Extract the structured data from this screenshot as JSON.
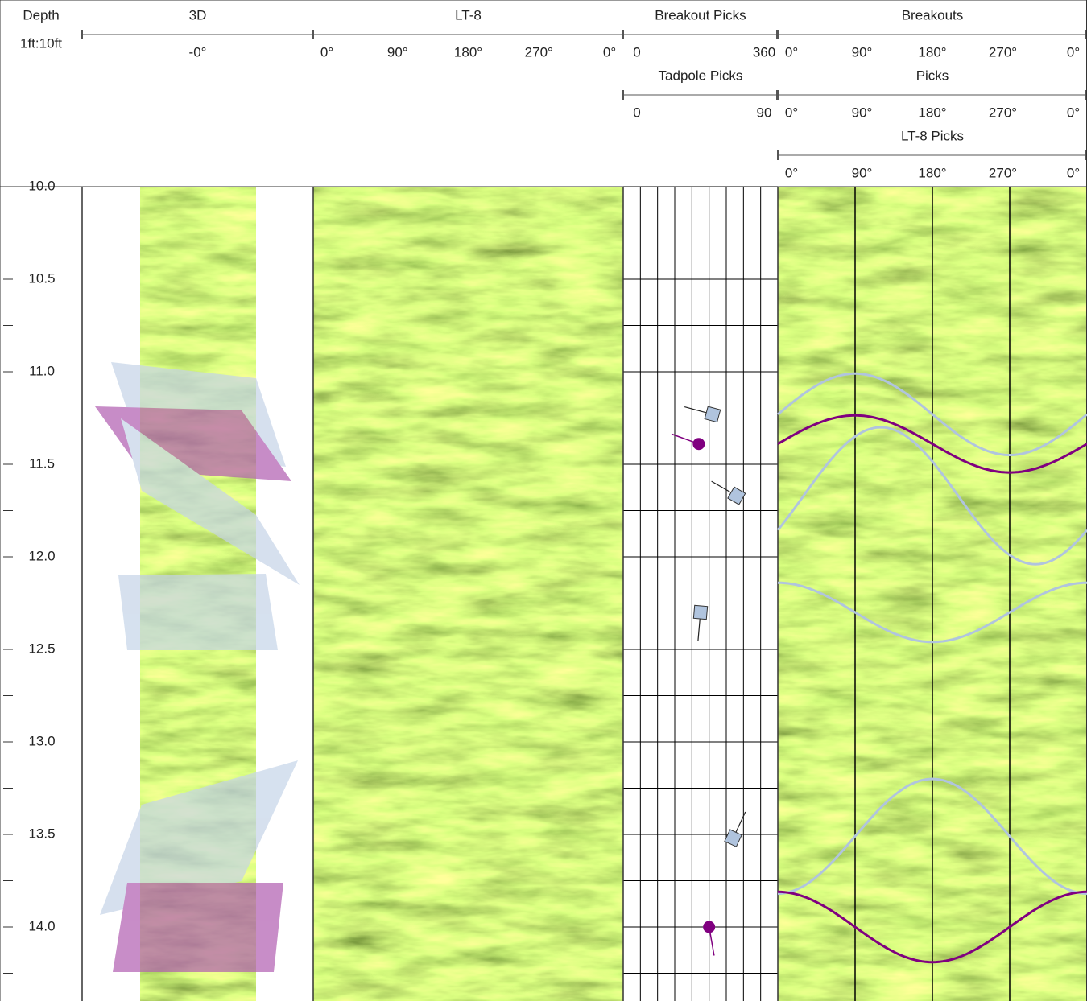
{
  "tracks": [
    {
      "title": "Depth",
      "subtitle": "1ft:10ft"
    },
    {
      "title": "3D",
      "scales": [
        {
          "labels": [
            "-0°"
          ]
        }
      ]
    },
    {
      "title": "LT-8",
      "scales": [
        {
          "labels": [
            "0°",
            "90°",
            "180°",
            "270°",
            "0°"
          ]
        }
      ]
    },
    {
      "title": "Breakout Picks",
      "scales": [
        {
          "labels": [
            "0",
            "360"
          ]
        },
        {
          "title": "Tadpole Picks",
          "labels": [
            "0",
            "90"
          ]
        }
      ]
    },
    {
      "title": "Breakouts",
      "scales": [
        {
          "labels": [
            "0°",
            "90°",
            "180°",
            "270°",
            "0°"
          ]
        },
        {
          "title": "Picks",
          "labels": [
            "0°",
            "90°",
            "180°",
            "270°",
            "0°"
          ]
        },
        {
          "title": "LT-8 Picks",
          "labels": [
            "0°",
            "90°",
            "180°",
            "270°",
            "0°"
          ]
        }
      ]
    }
  ],
  "depth_axis": {
    "lim": [
      10,
      14.4
    ],
    "ticks": [
      {
        "value": 10,
        "label": "10.0"
      },
      10.5,
      {
        "value": 11,
        "label": "11.0"
      },
      11.5,
      {
        "value": 12,
        "label": "12.0"
      },
      12.5,
      {
        "value": 13,
        "label": "13.0"
      },
      13.5,
      {
        "value": 14,
        "label": "14.0"
      }
    ],
    "minor_ticks": [
      10.25,
      10.75,
      11.25,
      11.75,
      12.25,
      12.75,
      13.25,
      13.75,
      14.25
    ]
  },
  "tadpoles": {
    "dip_lim": [
      0,
      90
    ],
    "grid_dips": [
      10,
      20,
      30,
      40,
      50,
      60,
      70,
      80
    ],
    "picks": [
      {
        "depth": 11.23,
        "dip": 52,
        "azimuth": 285,
        "symbol": "square",
        "color": "#b0c4de"
      },
      {
        "depth": 11.39,
        "dip": 44,
        "azimuth": 290,
        "symbol": "circle",
        "color": "#800080"
      },
      {
        "depth": 11.67,
        "dip": 66,
        "azimuth": 300,
        "symbol": "square",
        "color": "#b0c4de"
      },
      {
        "depth": 12.3,
        "dip": 45,
        "azimuth": 185,
        "symbol": "square",
        "color": "#b0c4de"
      },
      {
        "depth": 13.52,
        "dip": 64,
        "azimuth": 25,
        "symbol": "square",
        "color": "#b0c4de"
      },
      {
        "depth": 14.0,
        "dip": 50,
        "azimuth": 170,
        "symbol": "circle",
        "color": "#800080"
      }
    ]
  },
  "sinusoids": {
    "azimuth_lim": [
      0,
      360
    ],
    "grid_azimuths": [
      90,
      180,
      270
    ],
    "picks": [
      {
        "depth": 11.23,
        "amplitude": 0.22,
        "azimuth": 270,
        "color": "#b0c4de"
      },
      {
        "depth": 11.39,
        "amplitude": 0.154,
        "azimuth": 270,
        "color": "#800080"
      },
      {
        "depth": 11.67,
        "amplitude": 0.37,
        "azimuth": 300,
        "color": "#b0c4de"
      },
      {
        "depth": 12.3,
        "amplitude": 0.16,
        "azimuth": 180,
        "color": "#b0c4de"
      },
      {
        "depth": 13.51,
        "amplitude": 0.31,
        "azimuth": 0,
        "color": "#b0c4de"
      },
      {
        "depth": 14.0,
        "amplitude": 0.19,
        "azimuth": 180,
        "color": "#800080"
      }
    ]
  }
}
